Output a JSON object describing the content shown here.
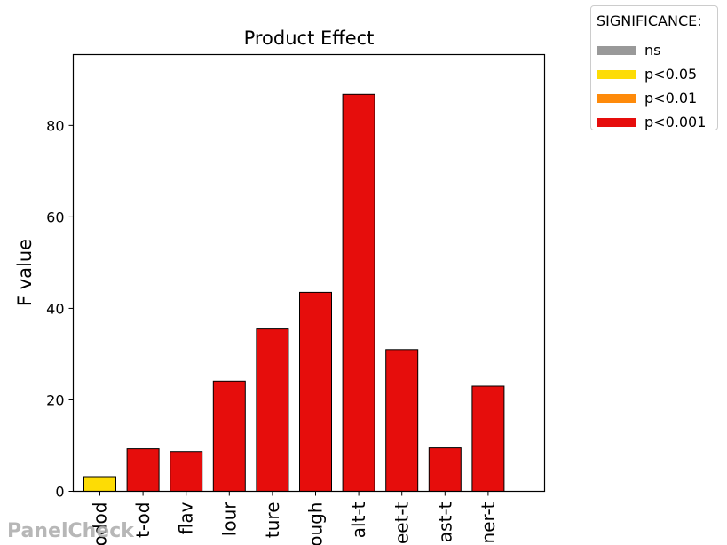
{
  "chart_data": {
    "type": "bar",
    "title": "Product Effect",
    "xlabel": "",
    "ylabel": "F value",
    "ylim": [
      0,
      95.5
    ],
    "yticks": [
      0,
      20,
      40,
      60,
      80
    ],
    "grid": false,
    "categories": [
      "odod",
      "t-od",
      "flav",
      "lour",
      "ture",
      "ough",
      "alt-t",
      "eet-t",
      "ast-t",
      "ner-t"
    ],
    "values": [
      3.2,
      9.3,
      8.7,
      24.1,
      35.5,
      43.5,
      86.8,
      31.0,
      9.5,
      23.0
    ],
    "significance": [
      "p<0.05",
      "p<0.001",
      "p<0.001",
      "p<0.001",
      "p<0.001",
      "p<0.001",
      "p<0.001",
      "p<0.001",
      "p<0.001",
      "p<0.001"
    ],
    "legend": {
      "title": "SIGNIFICANCE:",
      "placement": "outside-top-right",
      "entries": [
        {
          "label": "ns",
          "color": "#999999"
        },
        {
          "label": "p<0.05",
          "color": "#fddc05"
        },
        {
          "label": "p<0.01",
          "color": "#fe8a0a"
        },
        {
          "label": "p<0.001",
          "color": "#e60d0c"
        }
      ]
    }
  },
  "watermark": "PanelCheck"
}
